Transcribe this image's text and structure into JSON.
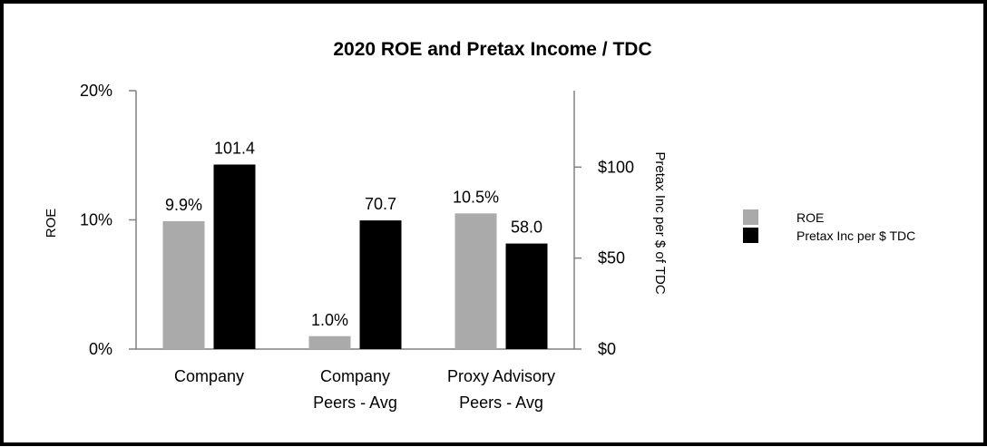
{
  "chart_data": {
    "type": "bar",
    "title": "2020 ROE and Pretax Income / TDC",
    "categories": [
      [
        "Company"
      ],
      [
        "Company",
        "Peers - Avg"
      ],
      [
        "Proxy Advisory",
        "Peers - Avg"
      ]
    ],
    "series": [
      {
        "name": "ROE",
        "axis": "left",
        "color": "#aaaaaa",
        "values": [
          9.9,
          1.0,
          10.5
        ],
        "labels": [
          "9.9%",
          "1.0%",
          "10.5%"
        ]
      },
      {
        "name": "Pretax Inc per $ TDC",
        "axis": "right",
        "color": "#000000",
        "values": [
          101.4,
          70.7,
          58.0
        ],
        "labels": [
          "101.4",
          "70.7",
          "58.0"
        ]
      }
    ],
    "left_axis": {
      "label": "ROE",
      "ylim": [
        0,
        20
      ],
      "ticks": [
        0,
        10,
        20
      ],
      "tick_labels": [
        "0%",
        "10%",
        "20%"
      ]
    },
    "right_axis": {
      "label": "Pretax Inc per $ of TDC",
      "ylim": [
        0,
        142
      ],
      "ticks": [
        0,
        50,
        100
      ],
      "tick_labels": [
        "$0",
        "$50",
        "$100"
      ]
    },
    "grid": false,
    "legend": "right"
  }
}
